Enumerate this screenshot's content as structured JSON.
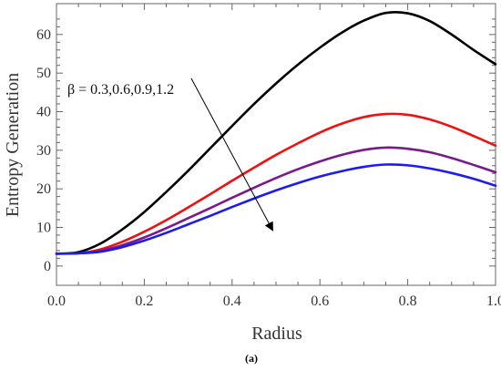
{
  "chart_data": {
    "type": "line",
    "title": "",
    "xlabel": "Radius",
    "ylabel": "Entropy Generation",
    "xlim": [
      0.0,
      1.0
    ],
    "ylim": [
      -5,
      68
    ],
    "xticks": [
      "0.0",
      "0.2",
      "0.4",
      "0.6",
      "0.8",
      "1.0"
    ],
    "yticks": [
      "0",
      "10",
      "20",
      "30",
      "40",
      "50",
      "60"
    ],
    "grid": false,
    "legend": "none",
    "series": [
      {
        "color": "#000000",
        "x": [
          0.0,
          0.05,
          0.1,
          0.15,
          0.2,
          0.25,
          0.3,
          0.35,
          0.4,
          0.45,
          0.5,
          0.55,
          0.6,
          0.65,
          0.7,
          0.75,
          0.8,
          0.85,
          0.9,
          0.95,
          1.0
        ],
        "y": [
          3.2,
          3.6,
          5.8,
          9.5,
          14.0,
          19.2,
          24.7,
          30.5,
          36.3,
          42.0,
          47.3,
          52.2,
          56.6,
          60.5,
          63.6,
          65.6,
          65.5,
          63.5,
          60.0,
          56.0,
          52.3
        ]
      },
      {
        "color": "#ee1111",
        "x": [
          0.0,
          0.05,
          0.1,
          0.15,
          0.2,
          0.25,
          0.3,
          0.35,
          0.4,
          0.45,
          0.5,
          0.55,
          0.6,
          0.65,
          0.7,
          0.75,
          0.8,
          0.85,
          0.9,
          0.95,
          1.0
        ],
        "y": [
          3.2,
          3.3,
          4.3,
          6.3,
          8.9,
          11.9,
          15.2,
          18.6,
          22.1,
          25.5,
          28.8,
          31.8,
          34.6,
          36.9,
          38.6,
          39.4,
          39.2,
          38.0,
          36.1,
          33.7,
          31.2
        ]
      },
      {
        "color": "#7a1a8a",
        "x": [
          0.0,
          0.05,
          0.1,
          0.15,
          0.2,
          0.25,
          0.3,
          0.35,
          0.4,
          0.45,
          0.5,
          0.55,
          0.6,
          0.65,
          0.7,
          0.75,
          0.8,
          0.85,
          0.9,
          0.95,
          1.0
        ],
        "y": [
          3.2,
          3.3,
          3.9,
          5.4,
          7.4,
          9.8,
          12.4,
          15.0,
          17.7,
          20.3,
          22.8,
          25.1,
          27.1,
          28.8,
          30.1,
          30.7,
          30.4,
          29.5,
          28.0,
          26.2,
          24.3
        ]
      },
      {
        "color": "#1c1cee",
        "x": [
          0.0,
          0.05,
          0.1,
          0.15,
          0.2,
          0.25,
          0.3,
          0.35,
          0.4,
          0.45,
          0.5,
          0.55,
          0.6,
          0.65,
          0.7,
          0.75,
          0.8,
          0.85,
          0.9,
          0.95,
          1.0
        ],
        "y": [
          3.2,
          3.3,
          3.7,
          4.9,
          6.6,
          8.6,
          10.8,
          13.0,
          15.3,
          17.5,
          19.6,
          21.5,
          23.2,
          24.6,
          25.7,
          26.3,
          26.1,
          25.3,
          24.1,
          22.6,
          20.8
        ]
      }
    ],
    "annotation": {
      "text": "β = 0.3,0.6,0.9,1.2",
      "arrow": "diagonal arrow pointing down-right toward lower curves"
    }
  },
  "caption": "(a)"
}
